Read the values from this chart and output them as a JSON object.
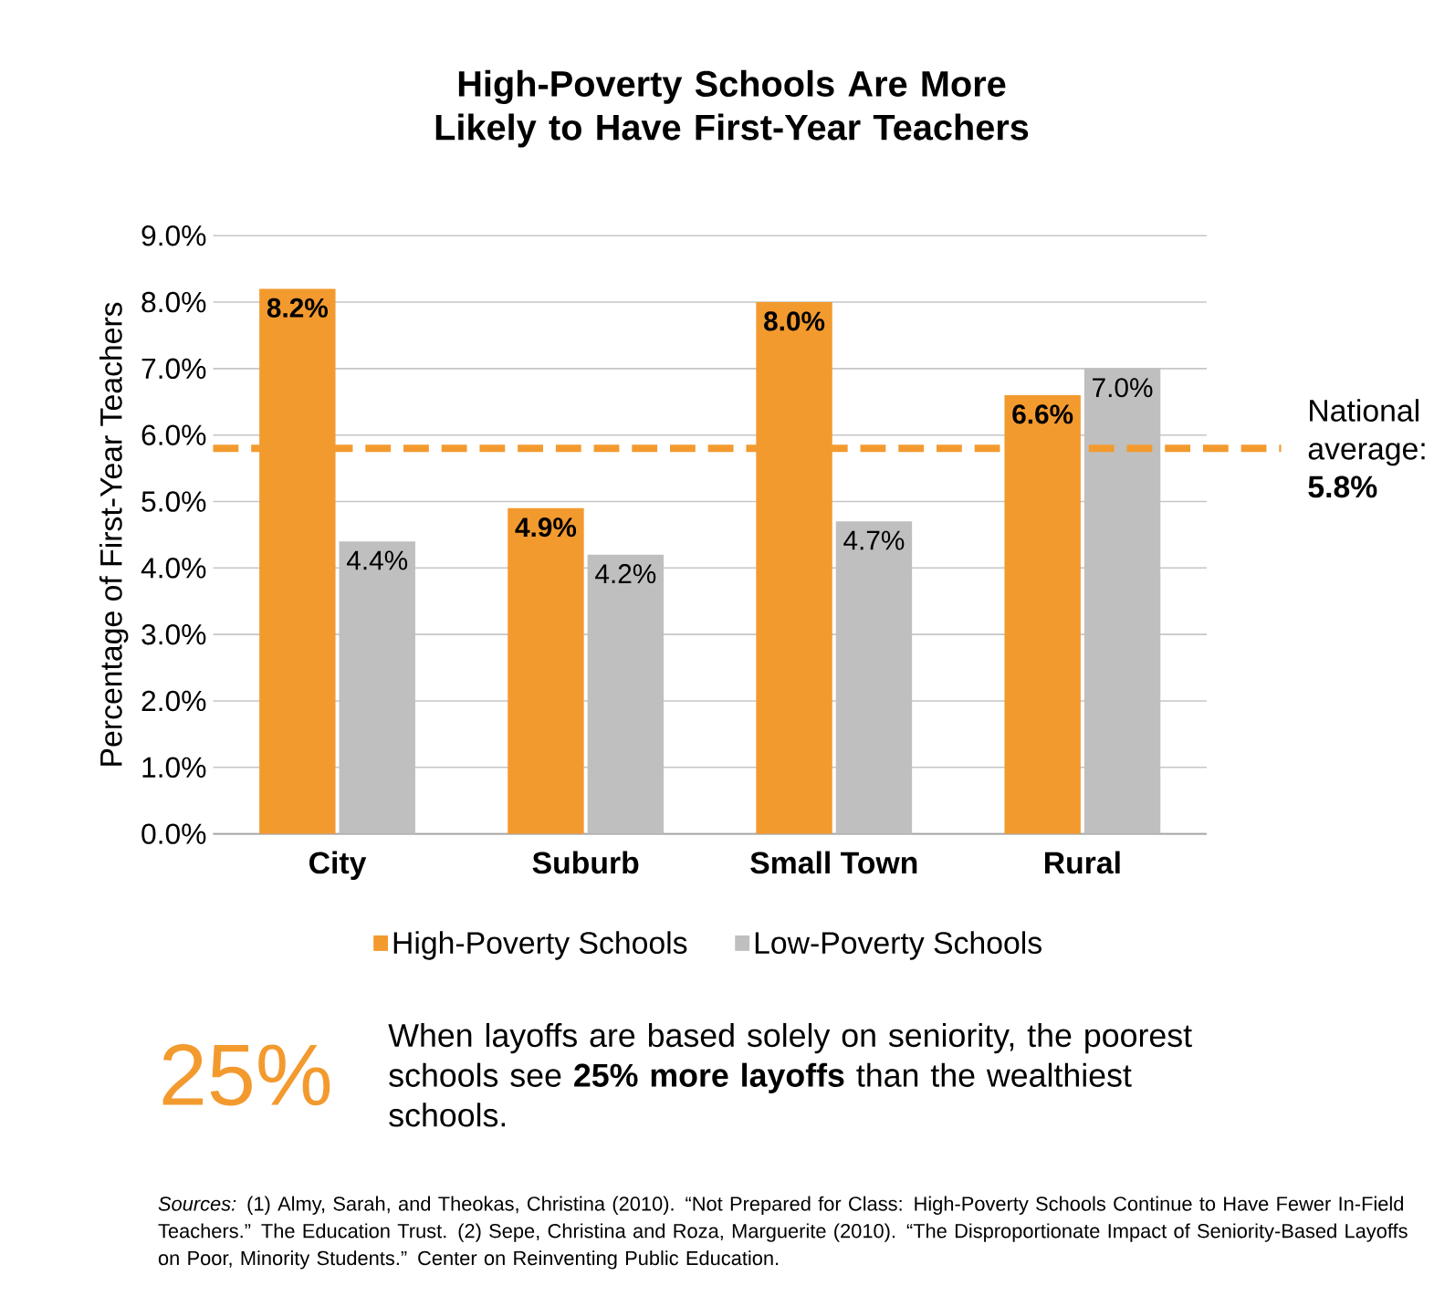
{
  "chart_data": {
    "type": "bar",
    "title": "High-Poverty Schools Are More Likely to Have First-Year Teachers",
    "ylabel": "Percentage of First-Year Teachers",
    "categories": [
      "City",
      "Suburb",
      "Small Town",
      "Rural"
    ],
    "series": [
      {
        "name": "High-Poverty Schools",
        "color": "#f39a2f",
        "values": [
          8.2,
          4.9,
          8.0,
          6.6
        ],
        "value_labels": [
          "8.2%",
          "4.9%",
          "8.0%",
          "6.6%"
        ]
      },
      {
        "name": "Low-Poverty Schools",
        "color": "#bfbfbf",
        "values": [
          4.4,
          4.2,
          4.7,
          7.0
        ],
        "value_labels": [
          "4.4%",
          "4.2%",
          "4.7%",
          "7.0%"
        ]
      }
    ],
    "ylim": [
      0,
      9
    ],
    "yticks": [
      {
        "value": 0,
        "label": "0.0%"
      },
      {
        "value": 1,
        "label": "1.0%"
      },
      {
        "value": 2,
        "label": "2.0%"
      },
      {
        "value": 3,
        "label": "3.0%"
      },
      {
        "value": 4,
        "label": "4.0%"
      },
      {
        "value": 5,
        "label": "5.0%"
      },
      {
        "value": 6,
        "label": "6.0%"
      },
      {
        "value": 7,
        "label": "7.0%"
      },
      {
        "value": 8,
        "label": "8.0%"
      },
      {
        "value": 9,
        "label": "9.0%"
      }
    ],
    "grid": "y",
    "legend": "bottom",
    "ref_lines": [
      {
        "axis": "y",
        "value": 5.8,
        "label": "National average: **5.8%**",
        "color": "#f39a2f",
        "line_style": "dashed"
      }
    ],
    "annotations": [
      "25%",
      "When layoffs are based solely on seniority, the poorest schools see **25% more layoffs** than the wealthiest schools.",
      "*Sources:* (1) Almy, Sarah, and Theokas, Christina (2010). “Not Prepared for Class:  High-Poverty Schools Continue to Have Fewer In-Field Teachers.” The Education Trust. (2) Sepe, Christina and Roza, Marguerite (2010). “The Disproportionate Impact of Seniority-Based Layoffs on Poor, Minority Students.” Center on Reinventing Public Education."
    ]
  }
}
